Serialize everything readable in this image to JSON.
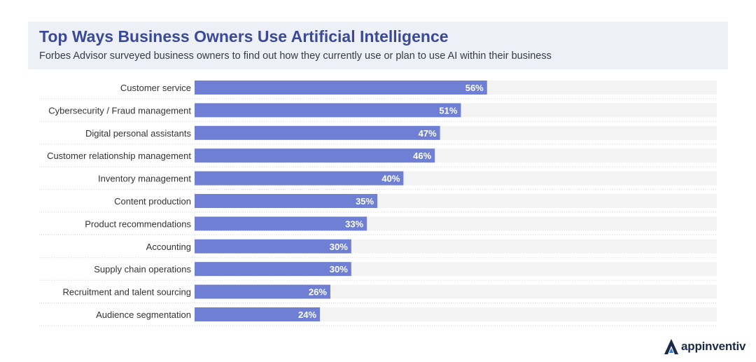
{
  "header": {
    "title": "Top Ways Business Owners Use Artificial Intelligence",
    "subtitle": "Forbes Advisor surveyed business owners to find out how they currently use or plan to use AI within their business"
  },
  "chart_data": {
    "type": "bar",
    "orientation": "horizontal",
    "categories": [
      "Customer service",
      "Cybersecurity / Fraud management",
      "Digital personal assistants",
      "Customer relationship management",
      "Inventory management",
      "Content production",
      "Product recommendations",
      "Accounting",
      "Supply chain operations",
      "Recruitment and talent sourcing",
      "Audience segmentation"
    ],
    "values": [
      56,
      51,
      47,
      46,
      40,
      35,
      33,
      30,
      30,
      26,
      24
    ],
    "value_labels": [
      "56%",
      "51%",
      "47%",
      "46%",
      "40%",
      "35%",
      "33%",
      "30%",
      "30%",
      "26%",
      "24%"
    ],
    "xlim": [
      0,
      100
    ],
    "unit": "%",
    "grid": false,
    "legend": "none",
    "colors": {
      "bar": "#6f80d4",
      "track": "#f3f3f3",
      "label": "#333333",
      "value_label": "#ffffff"
    }
  },
  "logo": {
    "text": "appinventiv",
    "icon": "appinventiv-logo-icon"
  }
}
